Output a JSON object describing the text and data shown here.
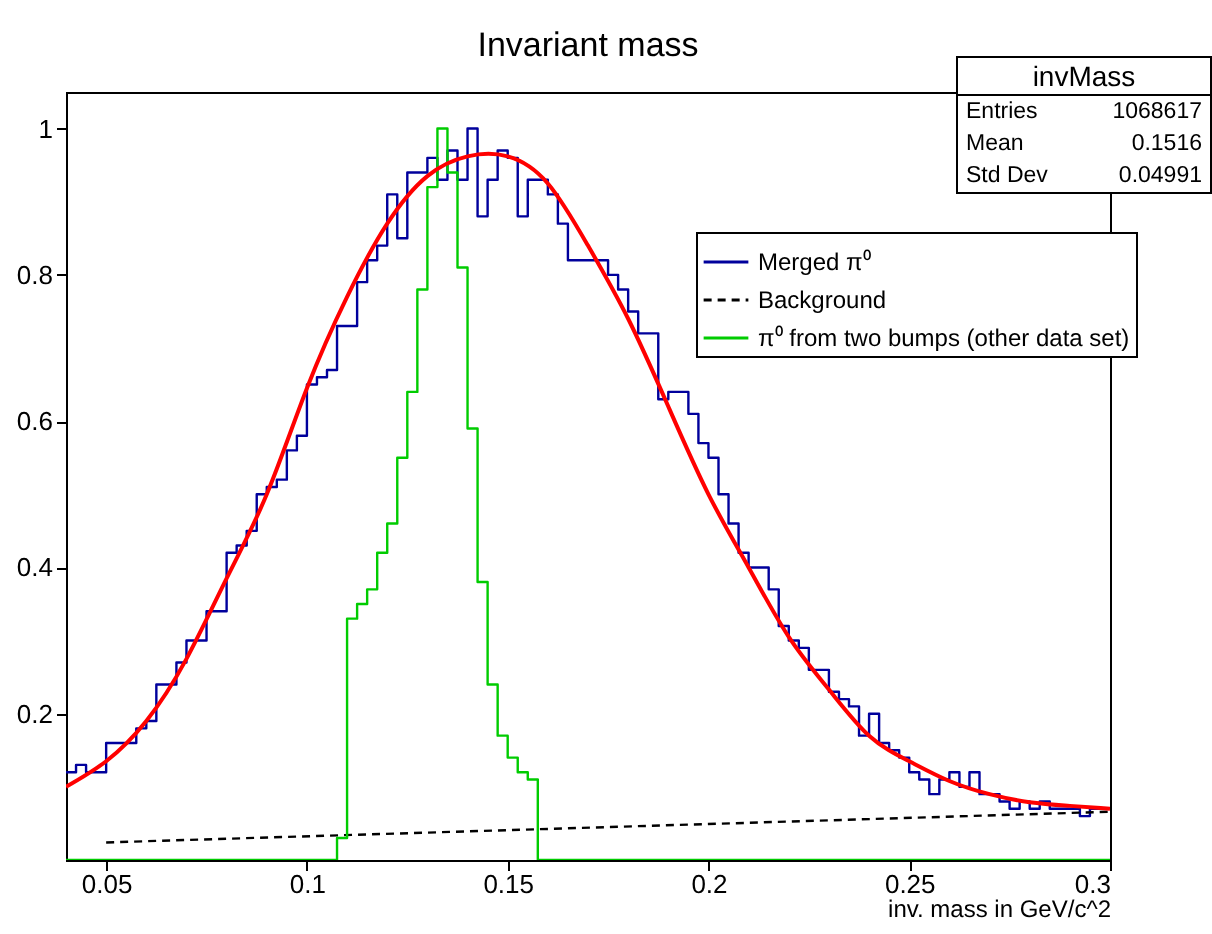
{
  "chart_data": {
    "type": "line",
    "title": "Invariant mass",
    "xlabel": "inv. mass in GeV/c^2",
    "xlim": [
      0.04,
      0.3
    ],
    "xticks": [
      0.05,
      0.1,
      0.15,
      0.2,
      0.25,
      0.3
    ],
    "ylim": [
      0,
      1.05
    ],
    "yticks": [
      0.2,
      0.4,
      0.6,
      0.8,
      1
    ],
    "grid": false,
    "legend": "top right",
    "annotations": [
      "invMass",
      "Entries",
      "1068617",
      "Mean",
      "0.1516",
      "Std Dev",
      "0.04991"
    ],
    "series": [
      {
        "name": "Merged π⁰",
        "type": "step",
        "color": "#00009c",
        "x": [
          0.04,
          0.0425,
          0.045,
          0.0475,
          0.05,
          0.0525,
          0.055,
          0.0575,
          0.06,
          0.0625,
          0.065,
          0.0675,
          0.07,
          0.0725,
          0.075,
          0.0775,
          0.08,
          0.0825,
          0.085,
          0.0875,
          0.09,
          0.0925,
          0.095,
          0.0975,
          0.1,
          0.1025,
          0.105,
          0.1075,
          0.11,
          0.1125,
          0.115,
          0.1175,
          0.12,
          0.1225,
          0.125,
          0.1275,
          0.13,
          0.1325,
          0.135,
          0.1375,
          0.14,
          0.1425,
          0.145,
          0.1475,
          0.15,
          0.1525,
          0.155,
          0.1575,
          0.16,
          0.1625,
          0.165,
          0.1675,
          0.17,
          0.1725,
          0.175,
          0.1775,
          0.18,
          0.1825,
          0.185,
          0.1875,
          0.19,
          0.1925,
          0.195,
          0.1975,
          0.2,
          0.2025,
          0.205,
          0.2075,
          0.21,
          0.2125,
          0.215,
          0.2175,
          0.22,
          0.2225,
          0.225,
          0.2275,
          0.23,
          0.2325,
          0.235,
          0.2375,
          0.24,
          0.2425,
          0.245,
          0.2475,
          0.25,
          0.2525,
          0.255,
          0.2575,
          0.26,
          0.2625,
          0.265,
          0.2675,
          0.27,
          0.2725,
          0.275,
          0.2775,
          0.28,
          0.2825,
          0.285,
          0.2875,
          0.29,
          0.2925,
          0.295,
          0.2975
        ],
        "values": [
          0.12,
          0.13,
          0.12,
          0.12,
          0.16,
          0.16,
          0.16,
          0.18,
          0.19,
          0.24,
          0.24,
          0.27,
          0.3,
          0.3,
          0.34,
          0.34,
          0.42,
          0.43,
          0.45,
          0.5,
          0.51,
          0.52,
          0.56,
          0.58,
          0.65,
          0.66,
          0.67,
          0.73,
          0.73,
          0.79,
          0.82,
          0.84,
          0.91,
          0.85,
          0.94,
          0.94,
          0.96,
          0.93,
          0.97,
          0.93,
          1.0,
          0.88,
          0.93,
          0.97,
          0.96,
          0.88,
          0.93,
          0.93,
          0.91,
          0.87,
          0.82,
          0.82,
          0.82,
          0.82,
          0.8,
          0.78,
          0.75,
          0.72,
          0.72,
          0.63,
          0.64,
          0.64,
          0.61,
          0.57,
          0.55,
          0.5,
          0.46,
          0.42,
          0.4,
          0.4,
          0.37,
          0.32,
          0.3,
          0.29,
          0.26,
          0.26,
          0.23,
          0.22,
          0.21,
          0.17,
          0.2,
          0.16,
          0.15,
          0.14,
          0.12,
          0.11,
          0.09,
          0.11,
          0.12,
          0.1,
          0.12,
          0.09,
          0.09,
          0.08,
          0.07,
          0.08,
          0.07,
          0.08,
          0.07,
          0.07,
          0.07,
          0.06,
          0.07,
          0.07
        ]
      },
      {
        "name": "Background",
        "type": "line",
        "color": "#000000",
        "line_style": "dashed",
        "x": [
          0.05,
          0.3
        ],
        "values": [
          0.024,
          0.066
        ]
      },
      {
        "name": "π⁰ from two bumps (other data set)",
        "type": "step",
        "color": "#00cc00",
        "x": [
          0.04,
          0.1075,
          0.11,
          0.1125,
          0.115,
          0.1175,
          0.12,
          0.1225,
          0.125,
          0.1275,
          0.13,
          0.1325,
          0.135,
          0.1375,
          0.14,
          0.1425,
          0.145,
          0.1475,
          0.15,
          0.1525,
          0.155,
          0.1575,
          0.3
        ],
        "values": [
          0,
          0.03,
          0.33,
          0.35,
          0.37,
          0.42,
          0.46,
          0.55,
          0.64,
          0.78,
          0.92,
          1.0,
          0.94,
          0.81,
          0.59,
          0.38,
          0.24,
          0.17,
          0.14,
          0.12,
          0.11,
          0,
          0
        ]
      },
      {
        "color": "#ff0000",
        "x": [
          0.04,
          0.05,
          0.06,
          0.07,
          0.08,
          0.09,
          0.1,
          0.11,
          0.12,
          0.13,
          0.14,
          0.15,
          0.16,
          0.17,
          0.18,
          0.19,
          0.2,
          0.21,
          0.22,
          0.23,
          0.24,
          0.25,
          0.26,
          0.27,
          0.28,
          0.29,
          0.3
        ],
        "values": [
          0.1,
          0.135,
          0.19,
          0.275,
          0.385,
          0.5,
          0.645,
          0.77,
          0.87,
          0.935,
          0.962,
          0.962,
          0.925,
          0.84,
          0.74,
          0.62,
          0.5,
          0.4,
          0.305,
          0.233,
          0.17,
          0.135,
          0.108,
          0.09,
          0.079,
          0.074,
          0.07
        ]
      }
    ]
  }
}
